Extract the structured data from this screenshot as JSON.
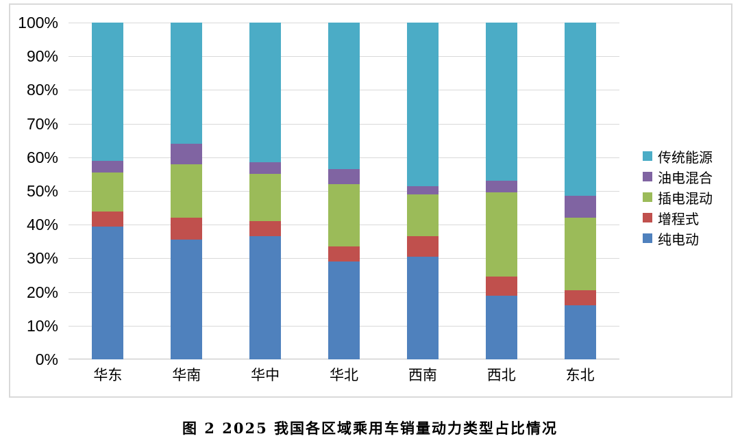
{
  "caption": "图 2 2025 我国各区域乘用车销量动力类型占比情况",
  "chart_data": {
    "type": "bar",
    "subtype": "stacked-100-percent",
    "categories": [
      "华东",
      "华南",
      "华中",
      "华北",
      "西南",
      "西北",
      "东北"
    ],
    "series": [
      {
        "name": "纯电动",
        "color": "#4F81BD",
        "values": [
          39.5,
          35.5,
          36.5,
          29.0,
          30.5,
          19.0,
          16.0
        ]
      },
      {
        "name": "增程式",
        "color": "#C0504D",
        "values": [
          4.5,
          6.5,
          4.5,
          4.5,
          6.0,
          5.5,
          4.5
        ]
      },
      {
        "name": "插电混动",
        "color": "#9BBB59",
        "values": [
          11.5,
          16.0,
          14.0,
          18.5,
          12.5,
          25.0,
          21.5
        ]
      },
      {
        "name": "油电混合",
        "color": "#8064A2",
        "values": [
          3.5,
          6.0,
          3.5,
          4.5,
          2.5,
          3.5,
          6.5
        ]
      },
      {
        "name": "传统能源",
        "color": "#4BACC6",
        "values": [
          41.0,
          36.0,
          41.5,
          43.5,
          48.5,
          47.0,
          51.5
        ]
      }
    ],
    "stack_order_bottom_to_top": [
      "纯电动",
      "增程式",
      "插电混动",
      "油电混合",
      "传统能源"
    ],
    "legend_order_top_to_bottom": [
      "传统能源",
      "油电混合",
      "插电混动",
      "增程式",
      "纯电动"
    ],
    "legend_position": "right",
    "y_ticks": [
      "100%",
      "90%",
      "80%",
      "70%",
      "60%",
      "50%",
      "40%",
      "30%",
      "20%",
      "10%",
      "0%"
    ],
    "ylim": [
      0,
      100
    ],
    "grid": true,
    "gridline_color": "#D9D9D9",
    "axis_line_color": "#BFBFBF",
    "title": "",
    "xlabel": "",
    "ylabel": ""
  }
}
